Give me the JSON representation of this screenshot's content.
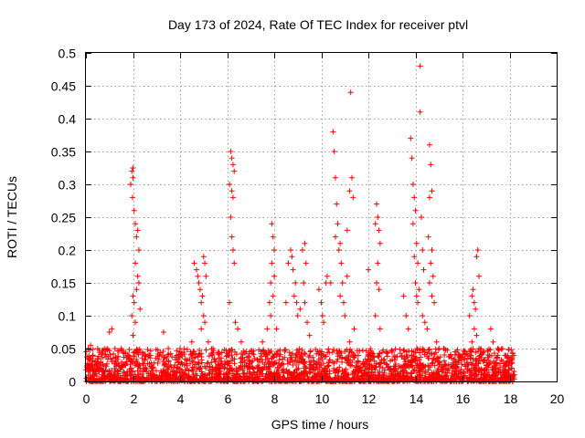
{
  "chart_data": {
    "type": "scatter",
    "title": "Day 173 of 2024, Rate Of TEC Index for receiver ptvl",
    "xlabel": "GPS time / hours",
    "ylabel": "ROTI / TECUs",
    "xlim": [
      0,
      20
    ],
    "ylim": [
      0,
      0.5
    ],
    "xticks": [
      0,
      2,
      4,
      6,
      8,
      10,
      12,
      14,
      16,
      18,
      20
    ],
    "yticks": [
      0,
      0.05,
      0.1,
      0.15,
      0.2,
      0.25,
      0.3,
      0.35,
      0.4,
      0.45,
      0.5
    ],
    "xtick_labels": [
      "0",
      "2",
      "4",
      "6",
      "8",
      "10",
      "12",
      "14",
      "16",
      "18",
      "20"
    ],
    "ytick_labels": [
      "0",
      "0.05",
      "0.1",
      "0.15",
      "0.2",
      "0.25",
      "0.3",
      "0.35",
      "0.4",
      "0.45",
      "0.5"
    ],
    "grid": true,
    "marker": "+",
    "color": "#ff0000",
    "series": [
      {
        "name": "ROTI",
        "points": [
          [
            0.1,
            0.05
          ],
          [
            0.2,
            0.055
          ],
          [
            0.3,
            0.04
          ],
          [
            0.5,
            0.05
          ],
          [
            1.0,
            0.075
          ],
          [
            1.1,
            0.08
          ],
          [
            1.5,
            0.05
          ],
          [
            1.9,
            0.3
          ],
          [
            1.95,
            0.32
          ],
          [
            2.0,
            0.325
          ],
          [
            2.0,
            0.31
          ],
          [
            1.98,
            0.28
          ],
          [
            2.05,
            0.26
          ],
          [
            2.1,
            0.24
          ],
          [
            2.15,
            0.22
          ],
          [
            2.2,
            0.23
          ],
          [
            2.25,
            0.2
          ],
          [
            2.1,
            0.18
          ],
          [
            2.2,
            0.16
          ],
          [
            2.15,
            0.14
          ],
          [
            2.0,
            0.13
          ],
          [
            2.05,
            0.12
          ],
          [
            1.95,
            0.1
          ],
          [
            2.1,
            0.09
          ],
          [
            2.25,
            0.15
          ],
          [
            2.3,
            0.11
          ],
          [
            2.0,
            0.07
          ],
          [
            3.3,
            0.075
          ],
          [
            3.5,
            0.05
          ],
          [
            4.0,
            0.05
          ],
          [
            4.5,
            0.06
          ],
          [
            4.6,
            0.18
          ],
          [
            4.7,
            0.17
          ],
          [
            4.75,
            0.16
          ],
          [
            4.8,
            0.15
          ],
          [
            4.85,
            0.14
          ],
          [
            4.9,
            0.12
          ],
          [
            4.95,
            0.13
          ],
          [
            5.0,
            0.19
          ],
          [
            5.05,
            0.18
          ],
          [
            5.1,
            0.16
          ],
          [
            5.0,
            0.1
          ],
          [
            5.05,
            0.09
          ],
          [
            4.9,
            0.08
          ],
          [
            5.2,
            0.06
          ],
          [
            5.4,
            0.05
          ],
          [
            6.1,
            0.3
          ],
          [
            6.15,
            0.35
          ],
          [
            6.2,
            0.34
          ],
          [
            6.25,
            0.33
          ],
          [
            6.3,
            0.32
          ],
          [
            6.2,
            0.29
          ],
          [
            6.25,
            0.28
          ],
          [
            6.15,
            0.25
          ],
          [
            6.2,
            0.22
          ],
          [
            6.25,
            0.2
          ],
          [
            6.3,
            0.18
          ],
          [
            6.1,
            0.12
          ],
          [
            6.35,
            0.09
          ],
          [
            6.45,
            0.08
          ],
          [
            6.6,
            0.06
          ],
          [
            7.5,
            0.06
          ],
          [
            7.7,
            0.08
          ],
          [
            7.8,
            0.12
          ],
          [
            7.85,
            0.15
          ],
          [
            7.9,
            0.24
          ],
          [
            7.95,
            0.22
          ],
          [
            8.0,
            0.2
          ],
          [
            7.9,
            0.18
          ],
          [
            8.0,
            0.16
          ],
          [
            7.95,
            0.13
          ],
          [
            7.85,
            0.1
          ],
          [
            8.1,
            0.08
          ],
          [
            8.5,
            0.12
          ],
          [
            8.6,
            0.18
          ],
          [
            8.7,
            0.2
          ],
          [
            8.75,
            0.19
          ],
          [
            8.8,
            0.17
          ],
          [
            8.9,
            0.15
          ],
          [
            8.85,
            0.13
          ],
          [
            8.95,
            0.12
          ],
          [
            9.0,
            0.1
          ],
          [
            9.1,
            0.11
          ],
          [
            9.2,
            0.2
          ],
          [
            9.3,
            0.21
          ],
          [
            9.35,
            0.18
          ],
          [
            9.25,
            0.15
          ],
          [
            9.3,
            0.12
          ],
          [
            9.4,
            0.09
          ],
          [
            9.5,
            0.07
          ],
          [
            9.9,
            0.14
          ],
          [
            10.0,
            0.12
          ],
          [
            10.05,
            0.1
          ],
          [
            10.1,
            0.09
          ],
          [
            10.2,
            0.15
          ],
          [
            10.25,
            0.16
          ],
          [
            10.4,
            0.15
          ],
          [
            10.5,
            0.38
          ],
          [
            10.55,
            0.35
          ],
          [
            10.6,
            0.31
          ],
          [
            10.65,
            0.27
          ],
          [
            10.7,
            0.24
          ],
          [
            10.6,
            0.22
          ],
          [
            10.75,
            0.2
          ],
          [
            10.8,
            0.21
          ],
          [
            10.85,
            0.18
          ],
          [
            10.9,
            0.15
          ],
          [
            10.8,
            0.13
          ],
          [
            10.95,
            0.12
          ],
          [
            11.0,
            0.1
          ],
          [
            11.1,
            0.16
          ],
          [
            11.2,
            0.29
          ],
          [
            11.25,
            0.44
          ],
          [
            11.3,
            0.31
          ],
          [
            11.35,
            0.28
          ],
          [
            11.1,
            0.23
          ],
          [
            11.4,
            0.08
          ],
          [
            11.2,
            0.06
          ],
          [
            12.0,
            0.17
          ],
          [
            12.3,
            0.24
          ],
          [
            12.35,
            0.27
          ],
          [
            12.4,
            0.25
          ],
          [
            12.45,
            0.23
          ],
          [
            12.5,
            0.21
          ],
          [
            12.4,
            0.18
          ],
          [
            12.35,
            0.15
          ],
          [
            12.45,
            0.14
          ],
          [
            12.3,
            0.1
          ],
          [
            12.5,
            0.08
          ],
          [
            13.5,
            0.13
          ],
          [
            13.6,
            0.1
          ],
          [
            13.7,
            0.08
          ],
          [
            13.8,
            0.37
          ],
          [
            13.85,
            0.34
          ],
          [
            13.9,
            0.3
          ],
          [
            13.95,
            0.28
          ],
          [
            14.0,
            0.26
          ],
          [
            13.9,
            0.24
          ],
          [
            14.05,
            0.21
          ],
          [
            13.95,
            0.19
          ],
          [
            14.1,
            0.18
          ],
          [
            14.0,
            0.15
          ],
          [
            14.15,
            0.14
          ],
          [
            14.05,
            0.13
          ],
          [
            14.1,
            0.12
          ],
          [
            14.2,
            0.48
          ],
          [
            14.2,
            0.41
          ],
          [
            14.25,
            0.25
          ],
          [
            14.3,
            0.2
          ],
          [
            14.35,
            0.17
          ],
          [
            14.3,
            0.1
          ],
          [
            14.4,
            0.09
          ],
          [
            14.6,
            0.36
          ],
          [
            14.65,
            0.33
          ],
          [
            14.7,
            0.29
          ],
          [
            14.6,
            0.28
          ],
          [
            14.55,
            0.22
          ],
          [
            14.7,
            0.2
          ],
          [
            14.65,
            0.18
          ],
          [
            14.75,
            0.16
          ],
          [
            14.6,
            0.15
          ],
          [
            14.7,
            0.13
          ],
          [
            14.8,
            0.12
          ],
          [
            14.5,
            0.08
          ],
          [
            14.9,
            0.06
          ],
          [
            15.0,
            0.05
          ],
          [
            15.2,
            0.05
          ],
          [
            16.3,
            0.1
          ],
          [
            16.4,
            0.13
          ],
          [
            16.45,
            0.14
          ],
          [
            16.5,
            0.12
          ],
          [
            16.55,
            0.11
          ],
          [
            16.6,
            0.19
          ],
          [
            16.65,
            0.2
          ],
          [
            16.7,
            0.16
          ],
          [
            16.5,
            0.08
          ],
          [
            16.6,
            0.07
          ],
          [
            16.4,
            0.06
          ],
          [
            16.7,
            0.05
          ],
          [
            17.2,
            0.08
          ],
          [
            17.3,
            0.06
          ],
          [
            17.5,
            0.05
          ],
          [
            17.8,
            0.04
          ],
          [
            18.0,
            0.03
          ],
          [
            18.1,
            0.02
          ],
          [
            18.2,
            0.01
          ]
        ]
      }
    ],
    "background_band": {
      "description": "dense ROTI baseline between 0 and ~0.05 TECUs from hour 0 to ~18.2",
      "x_range": [
        0,
        18.2
      ],
      "y_range": [
        0,
        0.05
      ]
    }
  }
}
